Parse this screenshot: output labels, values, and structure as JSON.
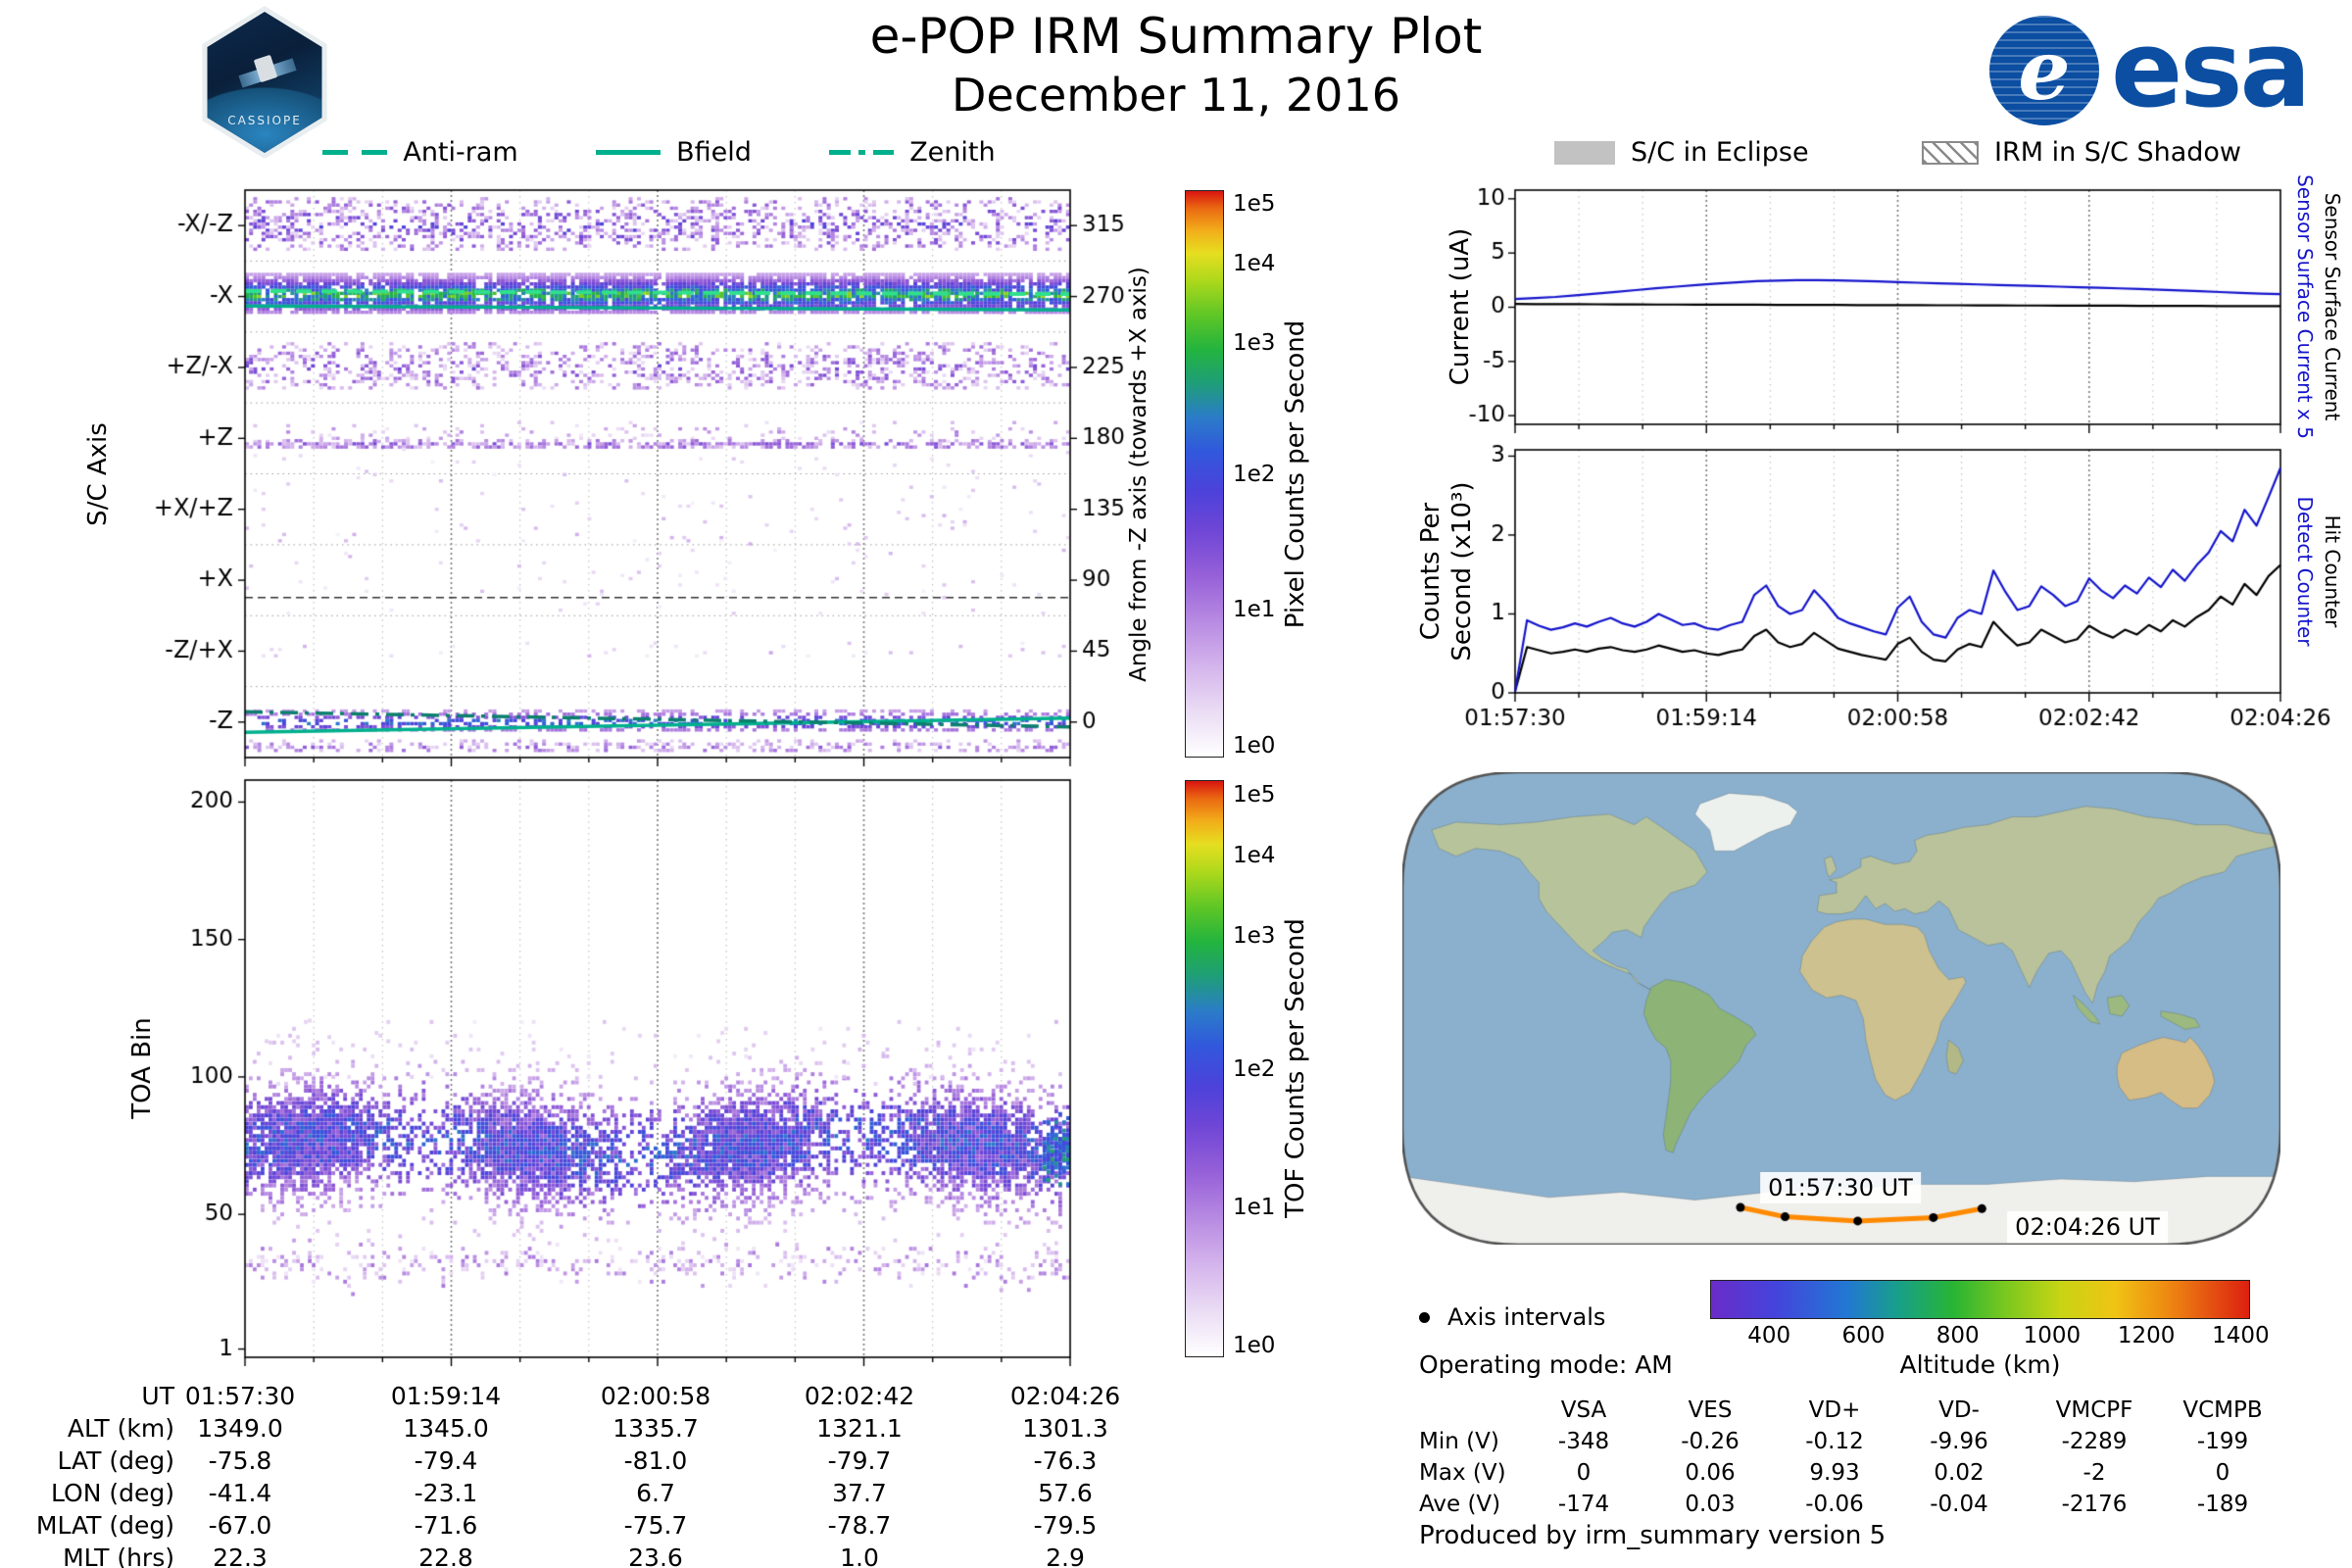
{
  "header": {
    "title": "e-POP IRM Summary Plot",
    "subtitle": "December 11, 2016",
    "mission_patch_label": "CASSIOPE",
    "esa_wordmark": "esa"
  },
  "left_panel": {
    "legend": {
      "color": "#00b08c",
      "items": [
        {
          "label": "Anti-ram",
          "style": "dashed"
        },
        {
          "label": "Bfield",
          "style": "solid"
        },
        {
          "label": "Zenith",
          "style": "dashdot"
        }
      ]
    },
    "sc_axis_label": "S/C Axis",
    "angle_axis_label": "Angle from -Z axis (towards +X axis)",
    "pixel_colorbar_label": "Pixel Counts per Second",
    "toa_axis_label": "TOA Bin",
    "tof_colorbar_label": "TOF Counts per Second",
    "ephemeris": {
      "rows": [
        {
          "label": "UT",
          "values": [
            "01:57:30",
            "01:59:14",
            "02:00:58",
            "02:02:42",
            "02:04:26"
          ]
        },
        {
          "label": "ALT (km)",
          "values": [
            "1349.0",
            "1345.0",
            "1335.7",
            "1321.1",
            "1301.3"
          ]
        },
        {
          "label": "LAT (deg)",
          "values": [
            "-75.8",
            "-79.4",
            "-81.0",
            "-79.7",
            "-76.3"
          ]
        },
        {
          "label": "LON (deg)",
          "values": [
            "-41.4",
            "-23.1",
            "6.7",
            "37.7",
            "57.6"
          ]
        },
        {
          "label": "MLAT (deg)",
          "values": [
            "-67.0",
            "-71.6",
            "-75.7",
            "-78.7",
            "-79.5"
          ]
        },
        {
          "label": "MLT (hrs)",
          "values": [
            "22.3",
            "22.8",
            "23.6",
            "1.0",
            "2.9"
          ]
        }
      ]
    }
  },
  "right_panel": {
    "legend": [
      {
        "label": "S/C in Eclipse",
        "swatch": "solid"
      },
      {
        "label": "IRM in S/C Shadow",
        "swatch": "hatched"
      }
    ],
    "current_ylabel": "Current (uA)",
    "current_right_labels": [
      {
        "text": "Sensor Surface Current x 5",
        "color": "#1414cc"
      },
      {
        "text": "Sensor Surface Current",
        "color": "#000000"
      }
    ],
    "counts_ylabel_line1": "Counts Per",
    "counts_ylabel_line2": "Second (x10³)",
    "counts_right_labels": [
      {
        "text": "Detect Counter",
        "color": "#1414cc"
      },
      {
        "text": "Hit Counter",
        "color": "#000000"
      }
    ],
    "map_labels": {
      "start": "01:57:30 UT",
      "end": "02:04:26 UT"
    },
    "axis_intervals_label": "Axis intervals",
    "operating_mode": "Operating mode: AM",
    "altitude_label": "Altitude (km)",
    "voltage_table": {
      "columns": [
        "VSA",
        "VES",
        "VD+",
        "VD-",
        "VMCPF",
        "VCMPB"
      ],
      "rows": [
        {
          "label": "Min (V)",
          "values": [
            "-348",
            "-0.26",
            "-0.12",
            "-9.96",
            "-2289",
            "-199"
          ]
        },
        {
          "label": "Max (V)",
          "values": [
            "0",
            "0.06",
            "9.93",
            "0.02",
            "-2",
            "0"
          ]
        },
        {
          "label": "Ave (V)",
          "values": [
            "-174",
            "0.03",
            "-0.06",
            "-0.04",
            "-2176",
            "-189"
          ]
        }
      ]
    },
    "produced_by": "Produced by irm_summary version 5"
  },
  "colormaps": {
    "counts": [
      [
        0,
        "#ffffff"
      ],
      [
        0.08,
        "#eadcf4"
      ],
      [
        0.16,
        "#d4b4ec"
      ],
      [
        0.24,
        "#b78ae2"
      ],
      [
        0.32,
        "#9660d8"
      ],
      [
        0.4,
        "#6f46d6"
      ],
      [
        0.47,
        "#4c42da"
      ],
      [
        0.54,
        "#3158dc"
      ],
      [
        0.6,
        "#2b7cc8"
      ],
      [
        0.66,
        "#1f9e78"
      ],
      [
        0.72,
        "#23b43e"
      ],
      [
        0.78,
        "#5ec626"
      ],
      [
        0.84,
        "#abd81c"
      ],
      [
        0.89,
        "#e6de20"
      ],
      [
        0.93,
        "#f2ae1a"
      ],
      [
        0.97,
        "#ea6812"
      ],
      [
        1,
        "#d81410"
      ]
    ],
    "altitude": [
      [
        0,
        "#6a2cc8"
      ],
      [
        0.12,
        "#4444dc"
      ],
      [
        0.25,
        "#2277d4"
      ],
      [
        0.35,
        "#18a088"
      ],
      [
        0.45,
        "#28b434"
      ],
      [
        0.55,
        "#7cc81e"
      ],
      [
        0.65,
        "#c8d414"
      ],
      [
        0.75,
        "#f0c414"
      ],
      [
        0.85,
        "#ee8812"
      ],
      [
        1,
        "#dc2010"
      ]
    ]
  },
  "chart_data": [
    {
      "id": "sc_axis_spectrogram",
      "type": "heatmap",
      "ylabel": "S/C Axis",
      "ylabel_right": "Angle from -Z axis (towards +X axis)",
      "colorbar_label": "Pixel Counts per Second",
      "colorbar_ticks": [
        {
          "label": "1e0",
          "f": 0.02
        },
        {
          "label": "1e1",
          "f": 0.26
        },
        {
          "label": "1e2",
          "f": 0.5
        },
        {
          "label": "1e3",
          "f": 0.73
        },
        {
          "label": "1e4",
          "f": 0.87
        },
        {
          "label": "1e5",
          "f": 0.975
        }
      ],
      "y_categories": [
        "-X/-Z",
        "-X",
        "+Z/-X",
        "+Z",
        "+X/+Z",
        "+X",
        "-Z/+X",
        "-Z"
      ],
      "right_ticks": [
        "315",
        "270",
        "225",
        "180",
        "135",
        "90",
        "45",
        "0"
      ],
      "angle_range": [
        -22.5,
        337.5
      ],
      "x_ticks": [
        "01:57:30",
        "01:59:14",
        "02:00:58",
        "02:02:42",
        "02:04:26"
      ],
      "overlays": [
        {
          "style": "dashed",
          "color": "#2fe08c",
          "a0": 273.5,
          "a1": 271.5,
          "width": 4
        },
        {
          "style": "solid",
          "color": "#00b08c",
          "a0": 264,
          "a1": 261.5,
          "width": 3.5
        },
        {
          "style": "solid",
          "color": "#00b08c",
          "a0": -6.5,
          "a1": 2.5,
          "width": 3.5
        },
        {
          "style": "dashdot",
          "color": "#0c7f6d",
          "a0": 6.5,
          "a1": -3,
          "width": 3.5
        }
      ],
      "bands": [
        {
          "center": 315,
          "halfwidth": 17,
          "density": 0.42,
          "tmin": 0.08,
          "tmax": 0.48,
          "core": 0
        },
        {
          "center": 271,
          "halfwidth": 13,
          "density": 0.95,
          "tmin": 0.2,
          "tmax": 0.9,
          "core": 1
        },
        {
          "center": 225,
          "halfwidth": 15,
          "density": 0.38,
          "tmin": 0.07,
          "tmax": 0.42,
          "core": 0
        },
        {
          "center": 183,
          "halfwidth": 7,
          "density": 0.12,
          "tmin": 0.05,
          "tmax": 0.28,
          "core": 0
        },
        {
          "center": 176,
          "halfwidth": 2.5,
          "density": 0.8,
          "tmin": 0.12,
          "tmax": 0.42,
          "core": 0
        },
        {
          "center": 120,
          "halfwidth": 55,
          "density": 0.02,
          "tmin": 0.03,
          "tmax": 0.18,
          "core": 0
        },
        {
          "center": 45,
          "halfwidth": 5,
          "density": 0.06,
          "tmin": 0.04,
          "tmax": 0.2,
          "core": 0
        },
        {
          "center": 0,
          "halfwidth": 7,
          "density": 0.5,
          "tmin": 0.2,
          "tmax": 0.7,
          "core": 1
        },
        {
          "center": -16,
          "halfwidth": 4,
          "density": 0.45,
          "tmin": 0.08,
          "tmax": 0.35,
          "core": 0
        }
      ]
    },
    {
      "id": "toa_spectrogram",
      "type": "heatmap",
      "ylabel": "TOA Bin",
      "colorbar_label": "TOF Counts per Second",
      "colorbar_ticks": [
        {
          "label": "1e0",
          "f": 0.02
        },
        {
          "label": "1e1",
          "f": 0.26
        },
        {
          "label": "1e2",
          "f": 0.5
        },
        {
          "label": "1e3",
          "f": 0.73
        },
        {
          "label": "1e4",
          "f": 0.87
        },
        {
          "label": "1e5",
          "f": 0.975
        }
      ],
      "ylim": [
        -2,
        208
      ],
      "y_ticks": [
        1,
        50,
        100,
        150,
        200
      ],
      "x_ticks": [
        "01:57:30",
        "01:59:14",
        "02:00:58",
        "02:02:42",
        "02:04:26"
      ],
      "main_band": {
        "center": 75,
        "sigma": 13,
        "density": 1.15,
        "tmin": 0.08,
        "tmax": 0.6
      },
      "secondary_band": {
        "center": 32,
        "sigma": 4,
        "density": 0.3,
        "tmin": 0.05,
        "tmax": 0.28
      },
      "sparse": {
        "min": 95,
        "max": 120,
        "density": 0.035
      },
      "edge_blob": {
        "center": 73,
        "sigma": 6,
        "tmin": 0.45,
        "tmax": 0.68
      }
    },
    {
      "id": "current",
      "type": "line",
      "ylabel": "Current (uA)",
      "ylim": [
        -10.8,
        10.8
      ],
      "y_ticks": [
        -10,
        -5,
        0,
        5,
        10
      ],
      "x_ticks": [
        "01:57:30",
        "01:59:14",
        "02:00:58",
        "02:02:42",
        "02:04:26"
      ],
      "show_x_labels": false,
      "series": [
        {
          "name": "Sensor Surface Current x 5",
          "color": "#1414cc",
          "values": [
            0.75,
            0.85,
            0.95,
            1.1,
            1.25,
            1.42,
            1.58,
            1.75,
            1.9,
            2.05,
            2.18,
            2.3,
            2.4,
            2.46,
            2.5,
            2.5,
            2.47,
            2.43,
            2.38,
            2.32,
            2.26,
            2.2,
            2.15,
            2.1,
            2.05,
            2.0,
            1.95,
            1.9,
            1.85,
            1.8,
            1.74,
            1.68,
            1.62,
            1.55,
            1.48,
            1.4,
            1.33,
            1.26,
            1.2
          ]
        },
        {
          "name": "Sensor Surface Current",
          "color": "#000000",
          "values": [
            0.3,
            0.29,
            0.28,
            0.28,
            0.27,
            0.26,
            0.26,
            0.25,
            0.25,
            0.24,
            0.24,
            0.23,
            0.23,
            0.22,
            0.22,
            0.21,
            0.21,
            0.2,
            0.2,
            0.19,
            0.19,
            0.18,
            0.18,
            0.17,
            0.17,
            0.16,
            0.16,
            0.15,
            0.15,
            0.14,
            0.14,
            0.13,
            0.13,
            0.12,
            0.12,
            0.11,
            0.11,
            0.1,
            0.1
          ]
        }
      ]
    },
    {
      "id": "counts",
      "type": "line",
      "ylabel": "Counts Per Second (x10³)",
      "ylim": [
        0,
        3.08
      ],
      "y_ticks": [
        0,
        1,
        2,
        3
      ],
      "x_ticks": [
        "01:57:30",
        "01:59:14",
        "02:00:58",
        "02:02:42",
        "02:04:26"
      ],
      "show_x_labels": true,
      "series": [
        {
          "name": "Detect Counter",
          "color": "#1414cc",
          "values": [
            0.02,
            0.92,
            0.85,
            0.8,
            0.83,
            0.88,
            0.84,
            0.9,
            0.95,
            0.88,
            0.84,
            0.9,
            1.0,
            0.93,
            0.86,
            0.88,
            0.82,
            0.8,
            0.86,
            0.9,
            1.24,
            1.36,
            1.1,
            1.0,
            1.05,
            1.3,
            1.14,
            0.95,
            0.88,
            0.83,
            0.78,
            0.74,
            1.08,
            1.22,
            0.9,
            0.74,
            0.7,
            0.95,
            1.05,
            1.0,
            1.55,
            1.28,
            1.05,
            1.1,
            1.35,
            1.24,
            1.1,
            1.16,
            1.45,
            1.3,
            1.2,
            1.36,
            1.26,
            1.46,
            1.34,
            1.56,
            1.42,
            1.62,
            1.78,
            2.05,
            1.92,
            2.32,
            2.12,
            2.48,
            2.85
          ]
        },
        {
          "name": "Hit Counter",
          "color": "#000000",
          "values": [
            0.02,
            0.58,
            0.54,
            0.5,
            0.52,
            0.55,
            0.52,
            0.56,
            0.58,
            0.54,
            0.52,
            0.55,
            0.6,
            0.56,
            0.52,
            0.54,
            0.5,
            0.48,
            0.52,
            0.55,
            0.72,
            0.8,
            0.64,
            0.58,
            0.62,
            0.76,
            0.66,
            0.56,
            0.52,
            0.48,
            0.45,
            0.42,
            0.62,
            0.7,
            0.52,
            0.42,
            0.4,
            0.55,
            0.62,
            0.58,
            0.9,
            0.74,
            0.6,
            0.64,
            0.8,
            0.72,
            0.64,
            0.68,
            0.85,
            0.76,
            0.7,
            0.8,
            0.74,
            0.86,
            0.78,
            0.92,
            0.84,
            0.96,
            1.05,
            1.22,
            1.12,
            1.38,
            1.24,
            1.48,
            1.62
          ]
        }
      ]
    },
    {
      "id": "ground_track",
      "type": "map",
      "projection": "world",
      "track": {
        "color": "#ff8a00",
        "lons": [
          -41.4,
          -23.1,
          6.7,
          37.7,
          57.6
        ],
        "lats": [
          -75.8,
          -79.4,
          -81.0,
          -79.7,
          -76.3
        ],
        "start_label": "01:57:30 UT",
        "end_label": "02:04:26 UT"
      },
      "altitude_colorbar": {
        "label": "Altitude (km)",
        "range": [
          275,
          1420
        ],
        "ticks": [
          400,
          600,
          800,
          1000,
          1200,
          1400
        ]
      }
    }
  ]
}
